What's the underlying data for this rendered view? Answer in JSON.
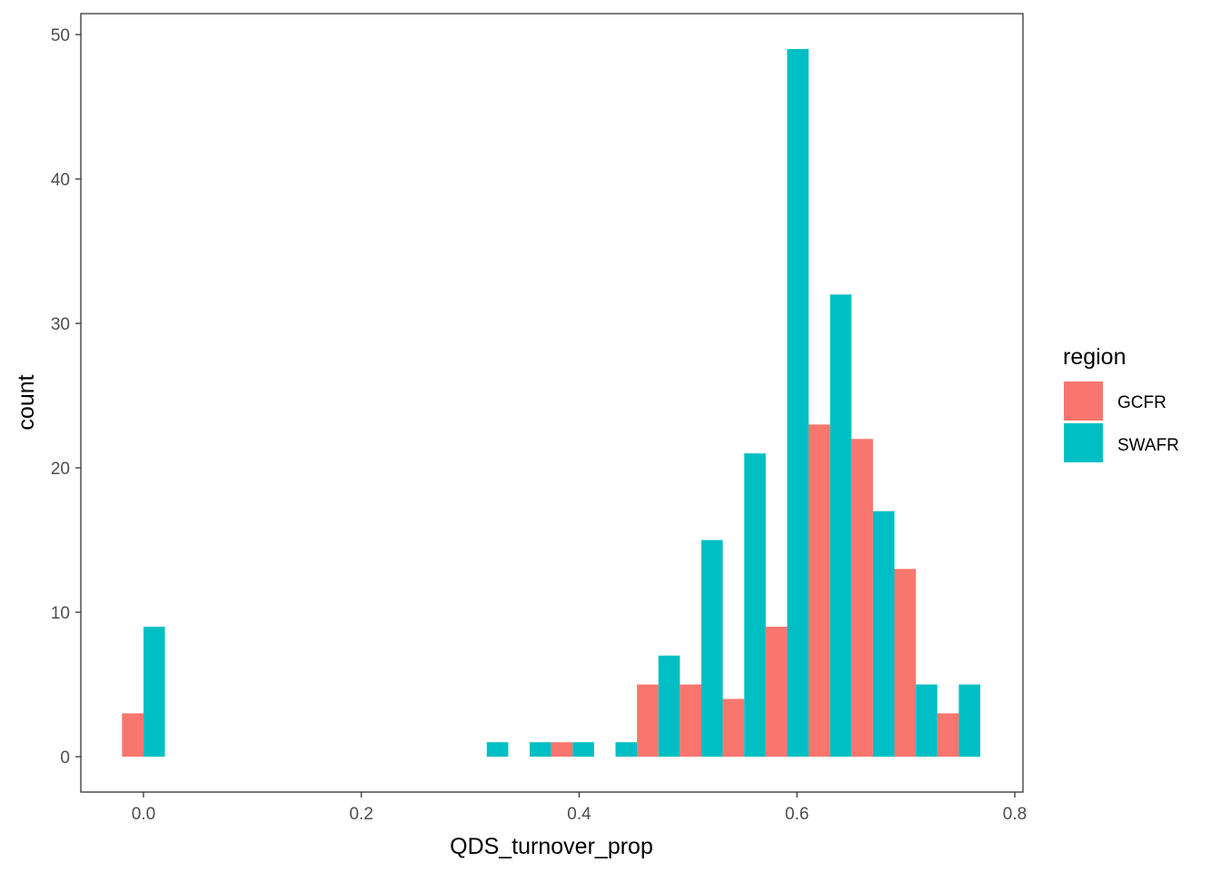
{
  "chart_data": {
    "type": "bar",
    "xlabel": "QDS_turnover_prop",
    "ylabel": "count",
    "xlim": [
      -0.0575,
      0.8075
    ],
    "ylim": [
      -2.45,
      51.45
    ],
    "x_ticks": [
      0.0,
      0.2,
      0.4,
      0.6,
      0.8
    ],
    "x_tick_labels": [
      "0.0",
      "0.2",
      "0.4",
      "0.6",
      "0.8"
    ],
    "y_ticks": [
      0,
      10,
      20,
      30,
      40,
      50
    ],
    "y_tick_labels": [
      "0",
      "10",
      "20",
      "30",
      "40",
      "50"
    ],
    "bin_width": 0.0394,
    "grid": false,
    "legend": {
      "title": "region",
      "position": "right",
      "entries": [
        {
          "label": "GCFR",
          "color": "#F8766D"
        },
        {
          "label": "SWAFR",
          "color": "#00BFC4"
        }
      ]
    },
    "x": [
      0.0,
      0.0394,
      0.0788,
      0.1182,
      0.1576,
      0.197,
      0.2364,
      0.2758,
      0.3152,
      0.3546,
      0.394,
      0.4334,
      0.4728,
      0.5122,
      0.5516,
      0.591,
      0.6304,
      0.6698,
      0.7092,
      0.7486
    ],
    "series": [
      {
        "name": "GCFR",
        "color": "#F8766D",
        "values": [
          3,
          0,
          0,
          0,
          0,
          0,
          0,
          0,
          0,
          0,
          1,
          0,
          5,
          5,
          4,
          9,
          23,
          22,
          13,
          3
        ]
      },
      {
        "name": "SWAFR",
        "color": "#00BFC4",
        "values": [
          9,
          0,
          0,
          0,
          0,
          0,
          0,
          0,
          1,
          1,
          1,
          1,
          7,
          15,
          21,
          49,
          32,
          17,
          5,
          5
        ]
      }
    ]
  }
}
